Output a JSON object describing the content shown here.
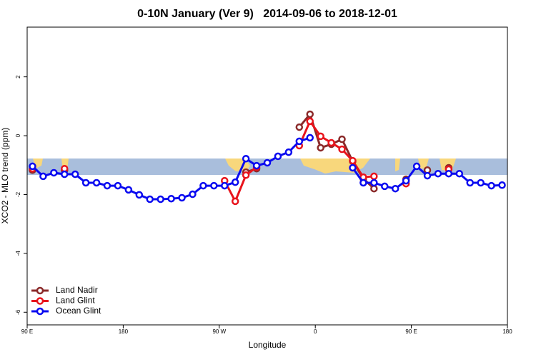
{
  "chart_data": {
    "type": "line",
    "title": "0-10N January (Ver 9)   2014-09-06 to 2018-12-01",
    "x_label": "Longitude",
    "y_label": "XCO2 - MLO trend (ppm)",
    "xlim": [
      90,
      540
    ],
    "ylim": [
      -6.43,
      3.69
    ],
    "xticks": [
      {
        "value": 90,
        "label": "90 E"
      },
      {
        "value": 180,
        "label": "180"
      },
      {
        "value": 270,
        "label": "90 W"
      },
      {
        "value": 360,
        "label": "0"
      },
      {
        "value": 450,
        "label": "90 E"
      },
      {
        "value": 540,
        "label": "180"
      }
    ],
    "yticks": [
      2,
      0,
      -2,
      -4,
      -6
    ],
    "legend": "bottom-left",
    "x": [
      95,
      105,
      115,
      125,
      135,
      145,
      155,
      165,
      175,
      185,
      195,
      205,
      215,
      225,
      235,
      245,
      255,
      265,
      275,
      285,
      295,
      305,
      315,
      325,
      335,
      345,
      355,
      365,
      375,
      385,
      395,
      405,
      415,
      425,
      435,
      445,
      455,
      465,
      475,
      485,
      495,
      505,
      515,
      525,
      535
    ],
    "series": [
      {
        "name": "Land Nadir",
        "color": "#8b2a2a",
        "values": [
          -1.17,
          null,
          null,
          -1.17,
          null,
          null,
          null,
          null,
          null,
          null,
          null,
          null,
          null,
          null,
          null,
          null,
          null,
          null,
          null,
          null,
          -1.24,
          -1.12,
          null,
          null,
          null,
          0.29,
          0.73,
          -0.41,
          -0.29,
          -0.12,
          -0.87,
          -1.46,
          -1.8,
          null,
          null,
          -1.48,
          null,
          -1.17,
          null,
          -1.09,
          null,
          null,
          null,
          null,
          null
        ]
      },
      {
        "name": "Land Glint",
        "color": "#e8141c",
        "values": [
          -1.12,
          null,
          null,
          -1.12,
          null,
          null,
          null,
          null,
          null,
          null,
          null,
          null,
          null,
          null,
          null,
          null,
          null,
          null,
          -1.53,
          -2.23,
          -1.34,
          -1.07,
          null,
          null,
          null,
          -0.34,
          0.49,
          -0.02,
          -0.24,
          -0.46,
          -0.85,
          -1.41,
          -1.38,
          null,
          null,
          -1.63,
          null,
          null,
          null,
          -1.14,
          null,
          null,
          null,
          null,
          null
        ]
      },
      {
        "name": "Ocean Glint",
        "color": "#0a0af0",
        "values": [
          -1.04,
          -1.38,
          -1.26,
          -1.31,
          -1.31,
          -1.6,
          -1.6,
          -1.7,
          -1.7,
          -1.84,
          -2.01,
          -2.16,
          -2.16,
          -2.14,
          -2.11,
          -1.99,
          -1.7,
          -1.7,
          -1.7,
          -1.58,
          -0.78,
          -1.02,
          -0.92,
          -0.7,
          -0.56,
          -0.19,
          -0.07,
          null,
          null,
          null,
          -1.09,
          -1.6,
          -1.6,
          -1.72,
          -1.8,
          -1.53,
          -1.04,
          -1.36,
          -1.29,
          -1.29,
          -1.29,
          -1.6,
          -1.6,
          -1.7,
          -1.68
        ]
      }
    ]
  }
}
